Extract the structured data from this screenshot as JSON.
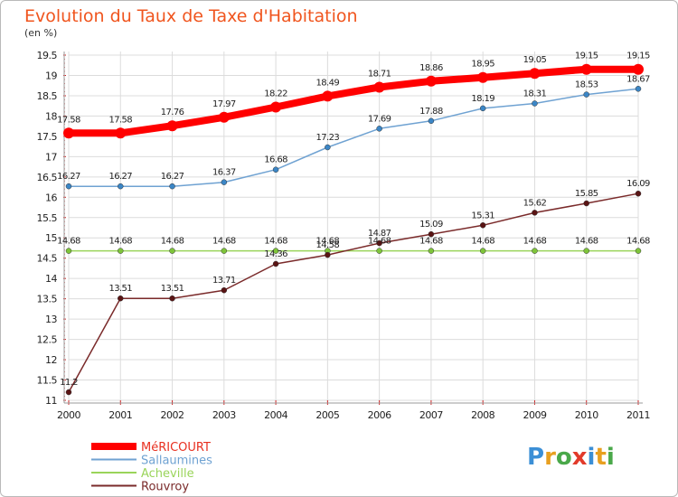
{
  "title": "Evolution du Taux de Taxe d'Habitation",
  "subtitle": "(en %)",
  "logo": {
    "text": "Proxiti",
    "letters": [
      {
        "ch": "P",
        "color": "#3b8fd6"
      },
      {
        "ch": "r",
        "color": "#e8a020"
      },
      {
        "ch": "o",
        "color": "#4aa84a"
      },
      {
        "ch": "x",
        "color": "#e23a2a"
      },
      {
        "ch": "i",
        "color": "#3b8fd6"
      },
      {
        "ch": "t",
        "color": "#e8a020"
      },
      {
        "ch": "i",
        "color": "#4aa84a"
      }
    ]
  },
  "chart_data": {
    "type": "line",
    "title": "Evolution du Taux de Taxe d'Habitation",
    "ylabel": "(en %)",
    "xlabel": "",
    "x": [
      "2000",
      "2001",
      "2002",
      "2003",
      "2004",
      "2005",
      "2006",
      "2007",
      "2008",
      "2009",
      "2010",
      "2011"
    ],
    "ylim": [
      11,
      19.5
    ],
    "yticks": [
      "11",
      "11.5",
      "12",
      "12.5",
      "13",
      "13.5",
      "14",
      "14.5",
      "15",
      "15.5",
      "16",
      "16.5",
      "17",
      "17.5",
      "18",
      "18.5",
      "19",
      "19.5"
    ],
    "grid": true,
    "legend_position": "bottom-left",
    "series": [
      {
        "name": "MéRICOURT",
        "color": "#ff0000",
        "marker": "#ff0000",
        "width": 8,
        "r": 6,
        "values": [
          17.58,
          17.58,
          17.76,
          17.97,
          18.22,
          18.49,
          18.71,
          18.86,
          18.95,
          19.05,
          19.15,
          19.15
        ],
        "labels": [
          "17.58",
          "17.58",
          "17.76",
          "17.97",
          "18.22",
          "18.49",
          "18.71",
          "18.86",
          "18.95",
          "19.05",
          "19.15",
          "19.15"
        ]
      },
      {
        "name": "Sallaumines",
        "color": "#6fa2d2",
        "marker": "#3b86c6",
        "width": 1.5,
        "r": 3,
        "values": [
          16.27,
          16.27,
          16.27,
          16.37,
          16.68,
          17.23,
          17.69,
          17.88,
          18.19,
          18.31,
          18.53,
          18.67
        ],
        "labels": [
          "16.27",
          "16.27",
          "16.27",
          "16.37",
          "16.68",
          "17.23",
          "17.69",
          "17.88",
          "18.19",
          "18.31",
          "18.53",
          "18.67"
        ]
      },
      {
        "name": "Acheville",
        "color": "#9ad45a",
        "marker": "#7ec43a",
        "width": 1.5,
        "r": 3,
        "values": [
          14.68,
          14.68,
          14.68,
          14.68,
          14.68,
          14.68,
          14.68,
          14.68,
          14.68,
          14.68,
          14.68,
          14.68
        ],
        "labels": [
          "14.68",
          "14.68",
          "14.68",
          "14.68",
          "14.68",
          "14.68",
          "14.68",
          "14.68",
          "14.68",
          "14.68",
          "14.68",
          "14.68"
        ]
      },
      {
        "name": "Rouvroy",
        "color": "#7a2a2a",
        "marker": "#5a1414",
        "width": 1.5,
        "r": 3,
        "values": [
          11.2,
          13.51,
          13.51,
          13.71,
          14.36,
          14.58,
          14.87,
          15.09,
          15.31,
          15.62,
          15.85,
          16.09
        ],
        "labels": [
          "11.2",
          "13.51",
          "13.51",
          "13.71",
          "14.36",
          "14.58",
          "14.87",
          "15.09",
          "15.31",
          "15.62",
          "15.85",
          "16.09"
        ]
      }
    ]
  }
}
